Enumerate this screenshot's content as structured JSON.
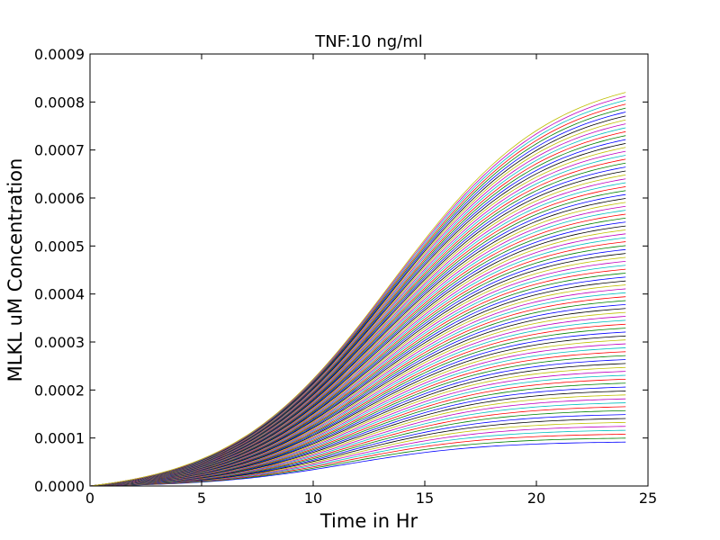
{
  "chart_data": {
    "type": "line",
    "title": "TNF:10 ng/ml",
    "xlabel": "Time in Hr",
    "ylabel": "MLKL uM Concentration",
    "xlim": [
      0,
      25
    ],
    "ylim": [
      0,
      0.0009
    ],
    "x_ticks": [
      "0",
      "5",
      "10",
      "15",
      "20",
      "25"
    ],
    "y_ticks": [
      "0.0000",
      "0.0001",
      "0.0002",
      "0.0003",
      "0.0004",
      "0.0005",
      "0.0006",
      "0.0007",
      "0.0008",
      "0.0009"
    ],
    "grid": false,
    "legend": "none",
    "x_range": [
      0,
      24
    ],
    "series_count": 90,
    "series_final_values": [
      9.15e-05,
      0.00082
    ],
    "series_color_cycle": [
      "#0000ff",
      "#008000",
      "#ff0000",
      "#00bfbf",
      "#bf00bf",
      "#bfbf00",
      "#000000"
    ]
  }
}
